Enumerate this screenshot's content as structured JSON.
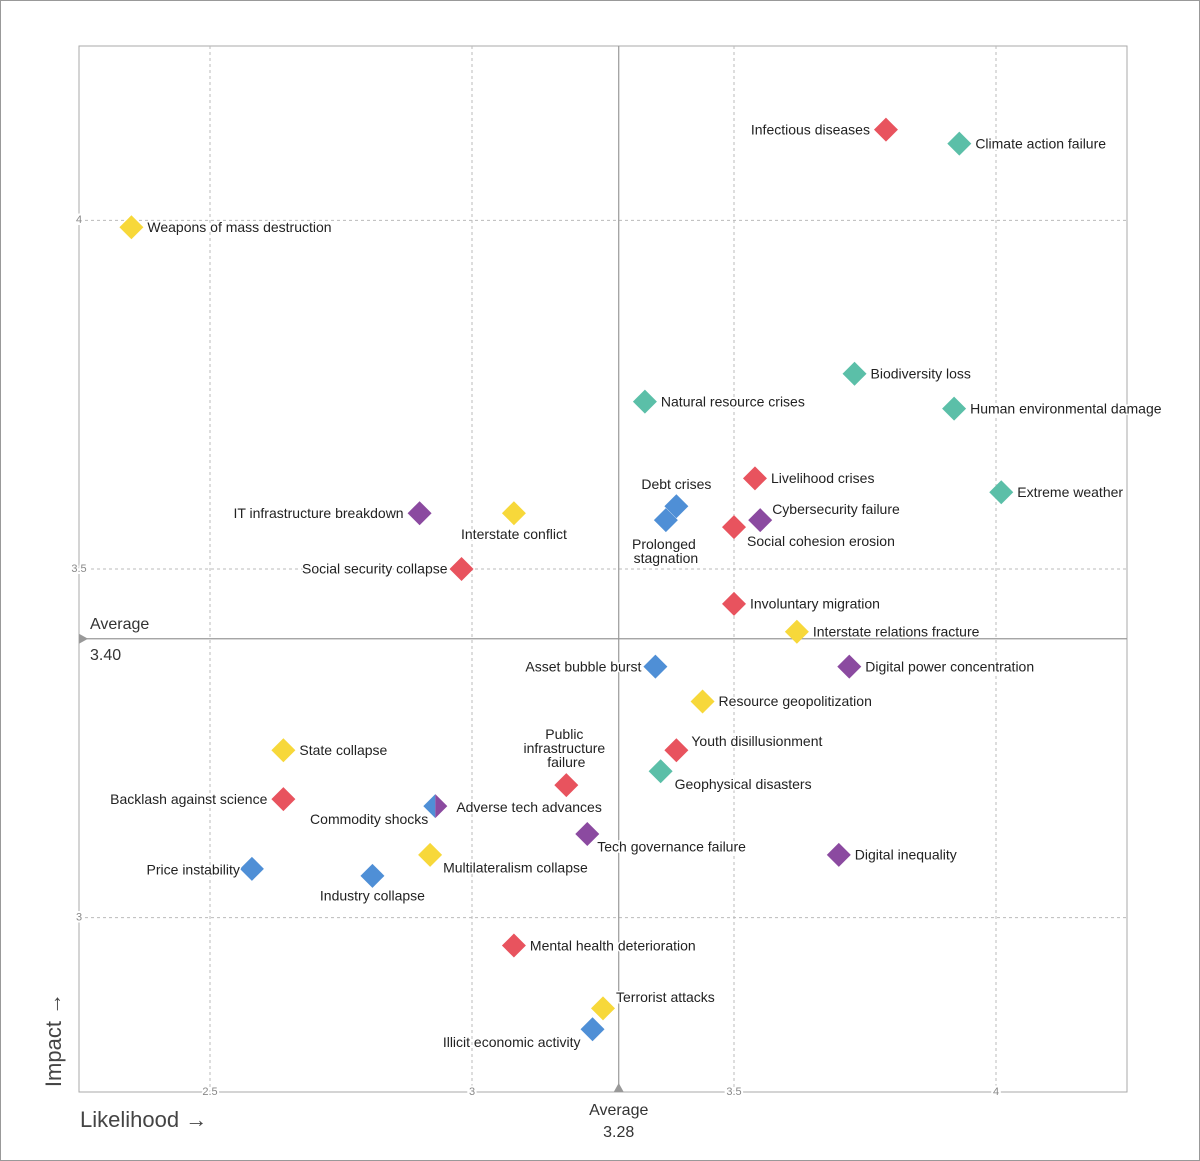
{
  "chart_data": {
    "type": "scatter",
    "xlabel": "Likelihood →",
    "ylabel": "Impact →",
    "xlim": [
      2.25,
      4.25
    ],
    "ylim": [
      2.75,
      4.25
    ],
    "xticks": [
      2.5,
      3,
      3.5,
      4
    ],
    "yticks": [
      3,
      3.5,
      4
    ],
    "grid": true,
    "average_label": "Average",
    "x_average": 3.28,
    "y_average": {
      "value": 3.4,
      "label": "3.40"
    },
    "points": [
      {
        "label": "Infectious diseases",
        "x": 3.79,
        "y": 4.13,
        "color": "#e8535e"
      },
      {
        "label": "Climate action failure",
        "x": 3.93,
        "y": 4.11,
        "color": "#5bbfa8"
      },
      {
        "label": "Weapons of mass destruction",
        "x": 2.35,
        "y": 3.99,
        "color": "#f7d83a"
      },
      {
        "label": "Biodiversity loss",
        "x": 3.73,
        "y": 3.78,
        "color": "#5bbfa8"
      },
      {
        "label": "Human environmental damage",
        "x": 3.92,
        "y": 3.73,
        "color": "#5bbfa8"
      },
      {
        "label": "Natural resource crises",
        "x": 3.33,
        "y": 3.74,
        "color": "#5bbfa8"
      },
      {
        "label": "Livelihood crises",
        "x": 3.54,
        "y": 3.63,
        "color": "#e8535e"
      },
      {
        "label": "Extreme weather",
        "x": 4.01,
        "y": 3.61,
        "color": "#5bbfa8"
      },
      {
        "label": "IT infrastructure breakdown",
        "x": 2.9,
        "y": 3.58,
        "color": "#8b4aa0"
      },
      {
        "label": "Interstate conflict",
        "x": 3.08,
        "y": 3.58,
        "color": "#f7d83a"
      },
      {
        "label": "Debt crises",
        "x": 3.39,
        "y": 3.59,
        "color": "#4f8fd6"
      },
      {
        "label": "Prolonged stagnation",
        "x": 3.37,
        "y": 3.57,
        "color": "#4f8fd6"
      },
      {
        "label": "Cybersecurity failure",
        "x": 3.55,
        "y": 3.57,
        "color": "#8b4aa0"
      },
      {
        "label": "Social cohesion erosion",
        "x": 3.5,
        "y": 3.56,
        "color": "#e8535e"
      },
      {
        "label": "Social security collapse",
        "x": 2.98,
        "y": 3.5,
        "color": "#e8535e"
      },
      {
        "label": "Involuntary migration",
        "x": 3.5,
        "y": 3.45,
        "color": "#e8535e"
      },
      {
        "label": "Interstate relations fracture",
        "x": 3.62,
        "y": 3.41,
        "color": "#f7d83a"
      },
      {
        "label": "Digital power concentration",
        "x": 3.72,
        "y": 3.36,
        "color": "#8b4aa0"
      },
      {
        "label": "Asset bubble burst",
        "x": 3.35,
        "y": 3.36,
        "color": "#4f8fd6"
      },
      {
        "label": "Resource geopolitization",
        "x": 3.44,
        "y": 3.31,
        "color": "#f7d83a"
      },
      {
        "label": "State collapse",
        "x": 2.64,
        "y": 3.24,
        "color": "#f7d83a"
      },
      {
        "label": "Youth disillusionment",
        "x": 3.39,
        "y": 3.24,
        "color": "#e8535e"
      },
      {
        "label": "Geophysical disasters",
        "x": 3.36,
        "y": 3.21,
        "color": "#5bbfa8"
      },
      {
        "label": "Public infrastructure failure",
        "x": 3.18,
        "y": 3.19,
        "color": "#e8535e"
      },
      {
        "label": "Backlash against science",
        "x": 2.64,
        "y": 3.17,
        "color": "#e8535e"
      },
      {
        "label": "Commodity shocks",
        "x": 2.93,
        "y": 3.16,
        "color": "#4f8fd6"
      },
      {
        "label": "Adverse tech advances",
        "x": 2.93,
        "y": 3.16,
        "color": "#8b4aa0"
      },
      {
        "label": "Tech governance failure",
        "x": 3.22,
        "y": 3.12,
        "color": "#8b4aa0"
      },
      {
        "label": "Digital inequality",
        "x": 3.7,
        "y": 3.09,
        "color": "#8b4aa0"
      },
      {
        "label": "Multilateralism collapse",
        "x": 2.92,
        "y": 3.09,
        "color": "#f7d83a"
      },
      {
        "label": "Price instability",
        "x": 2.58,
        "y": 3.07,
        "color": "#4f8fd6"
      },
      {
        "label": "Industry collapse",
        "x": 2.81,
        "y": 3.06,
        "color": "#4f8fd6"
      },
      {
        "label": "Mental health deterioration",
        "x": 3.08,
        "y": 2.96,
        "color": "#e8535e"
      },
      {
        "label": "Terrorist attacks",
        "x": 3.25,
        "y": 2.87,
        "color": "#f7d83a"
      },
      {
        "label": "Illicit economic activity",
        "x": 3.23,
        "y": 2.84,
        "color": "#4f8fd6"
      }
    ]
  }
}
